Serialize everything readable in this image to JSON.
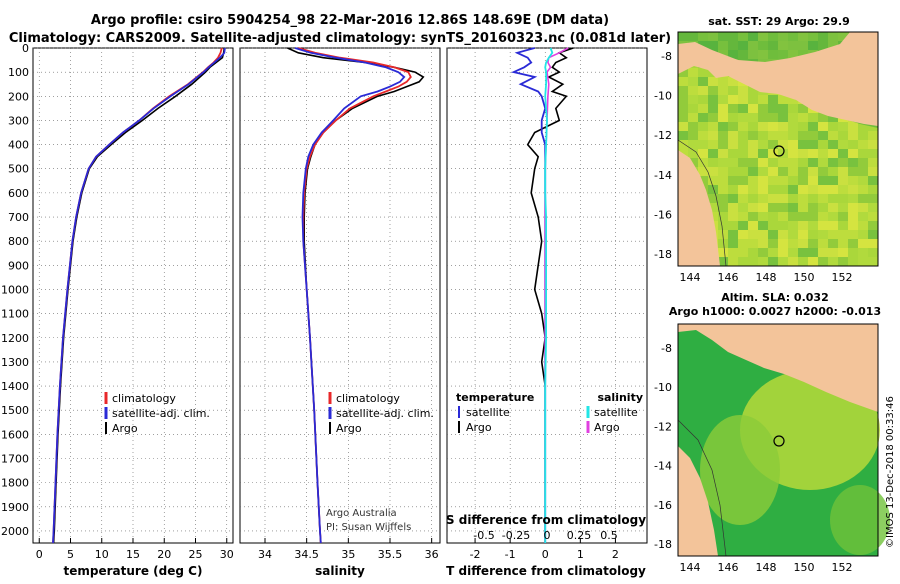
{
  "title": {
    "line1": "Argo profile: csiro 5904254_98 22-Mar-2016 12.86S 148.69E (DM data)",
    "line2": "Climatology: CARS2009. Satellite-adjusted climatology: synTS_20160323.nc (0.081d later)"
  },
  "colors": {
    "argo": "#000000",
    "clim": "#e8282a",
    "sat": "#2a2ad6",
    "sat_sal": "#22e6e6",
    "argo_sal": "#e040e0",
    "land": "#f3c49a"
  },
  "depth_axis": {
    "ticks": [
      "0",
      "100",
      "200",
      "300",
      "400",
      "500",
      "600",
      "700",
      "800",
      "900",
      "1000",
      "1100",
      "1200",
      "1300",
      "1400",
      "1500",
      "1600",
      "1700",
      "1800",
      "1900",
      "2000"
    ]
  },
  "chart_data": [
    {
      "type": "line",
      "panel": "temperature",
      "xlabel": "temperature (deg C)",
      "xlim": [
        -1,
        31
      ],
      "ylim": [
        0,
        2050
      ],
      "xticks": [
        "0",
        "5",
        "10",
        "15",
        "20",
        "25",
        "30"
      ],
      "series": [
        {
          "name": "Argo",
          "depth": [
            0,
            20,
            40,
            60,
            80,
            100,
            150,
            200,
            250,
            300,
            350,
            400,
            450,
            500,
            600,
            700,
            800,
            1000,
            1200,
            1400,
            1600,
            1800,
            2000,
            2050
          ],
          "values": [
            29.6,
            29.5,
            29.3,
            28.3,
            27.3,
            26.6,
            24.4,
            21.8,
            19.0,
            16.5,
            13.8,
            11.5,
            9.3,
            8.0,
            6.8,
            6.0,
            5.4,
            4.6,
            3.9,
            3.4,
            3.0,
            2.7,
            2.4,
            2.3
          ]
        },
        {
          "name": "climatology",
          "depth": [
            0,
            20,
            40,
            60,
            80,
            100,
            150,
            200,
            250,
            300,
            350,
            400,
            450,
            500,
            600,
            700,
            800,
            1000,
            1200,
            1400,
            1600,
            1800,
            2000,
            2050
          ],
          "values": [
            29.2,
            29.0,
            28.6,
            27.9,
            27.0,
            26.2,
            23.8,
            20.8,
            18.2,
            16.0,
            13.4,
            11.2,
            9.1,
            7.9,
            6.7,
            5.9,
            5.3,
            4.5,
            3.8,
            3.3,
            2.9,
            2.6,
            2.3,
            2.2
          ]
        },
        {
          "name": "satellite-adj. clim.",
          "depth": [
            0,
            20,
            40,
            60,
            80,
            100,
            150,
            200,
            250,
            300,
            350,
            400,
            450,
            500,
            600,
            700,
            800,
            1000,
            1200,
            1400,
            1600,
            1800,
            2000,
            2050
          ],
          "values": [
            29.7,
            29.6,
            28.9,
            28.0,
            27.1,
            26.3,
            23.9,
            21.0,
            18.3,
            16.0,
            13.4,
            11.2,
            9.1,
            7.9,
            6.7,
            5.9,
            5.3,
            4.5,
            3.8,
            3.3,
            2.9,
            2.6,
            2.3,
            2.2
          ]
        }
      ],
      "legend": [
        "climatology",
        "satellite-adj. clim.",
        "Argo"
      ]
    },
    {
      "type": "line",
      "panel": "salinity",
      "xlabel": "salinity",
      "xlim": [
        33.7,
        36.1
      ],
      "ylim": [
        0,
        2050
      ],
      "xticks": [
        "34",
        "34.5",
        "35",
        "35.5",
        "36"
      ],
      "series": [
        {
          "name": "Argo",
          "depth": [
            0,
            20,
            40,
            60,
            80,
            100,
            120,
            140,
            160,
            180,
            200,
            250,
            300,
            350,
            400,
            450,
            500,
            600,
            700,
            800,
            1000,
            1200,
            1500,
            1800,
            2000,
            2050
          ],
          "values": [
            34.27,
            34.4,
            34.7,
            35.2,
            35.55,
            35.8,
            35.9,
            35.85,
            35.7,
            35.55,
            35.35,
            35.05,
            34.85,
            34.7,
            34.6,
            34.55,
            34.51,
            34.48,
            34.47,
            34.47,
            34.5,
            34.54,
            34.59,
            34.63,
            34.66,
            34.67
          ]
        },
        {
          "name": "climatology",
          "depth": [
            0,
            20,
            40,
            60,
            80,
            100,
            120,
            140,
            160,
            180,
            200,
            250,
            300,
            350,
            400,
            450,
            500,
            600,
            700,
            800,
            1000,
            1200,
            1500,
            1800,
            2000,
            2050
          ],
          "values": [
            34.4,
            34.6,
            34.9,
            35.3,
            35.55,
            35.72,
            35.75,
            35.7,
            35.6,
            35.45,
            35.3,
            35.02,
            34.85,
            34.7,
            34.6,
            34.54,
            34.5,
            34.47,
            34.46,
            34.46,
            34.5,
            34.54,
            34.59,
            34.63,
            34.66,
            34.67
          ]
        },
        {
          "name": "satellite-adj. clim.",
          "depth": [
            0,
            20,
            40,
            60,
            80,
            100,
            120,
            140,
            160,
            180,
            200,
            250,
            300,
            350,
            400,
            450,
            500,
            600,
            700,
            800,
            1000,
            1200,
            1500,
            1800,
            2000,
            2050
          ],
          "values": [
            34.36,
            34.55,
            34.85,
            35.2,
            35.45,
            35.6,
            35.67,
            35.62,
            35.5,
            35.35,
            35.15,
            34.95,
            34.82,
            34.68,
            34.58,
            34.52,
            34.49,
            34.46,
            34.45,
            34.46,
            34.5,
            34.54,
            34.59,
            34.63,
            34.66,
            34.67
          ]
        }
      ],
      "legend": [
        "climatology",
        "satellite-adj. clim.",
        "Argo"
      ],
      "annotations": [
        "Argo Australia",
        "PI: Susan Wijffels"
      ]
    },
    {
      "type": "line",
      "panel": "difference",
      "xlabel": "T difference from climatology",
      "xlim": [
        -2.8,
        2.9
      ],
      "ylim": [
        0,
        2050
      ],
      "xticks": [
        "-2",
        "-1",
        "0",
        "1",
        "2"
      ],
      "s_axis_label": "S difference from climatology",
      "s_xticks": [
        "-0.5",
        "-0.25",
        "0",
        "0.25",
        "0.5"
      ],
      "series": [
        {
          "name": "temperature Argo",
          "depth": [
            0,
            20,
            40,
            60,
            80,
            100,
            120,
            150,
            180,
            200,
            250,
            300,
            350,
            400,
            450,
            500,
            600,
            700,
            800,
            900,
            1000,
            1100,
            1200,
            1300,
            1400,
            1600,
            1800,
            2000,
            2050
          ],
          "values": [
            0.8,
            0.4,
            0.6,
            0.3,
            0.2,
            0.4,
            0.1,
            0.5,
            0.2,
            0.6,
            0.3,
            0.4,
            -0.3,
            -0.5,
            -0.2,
            -0.3,
            -0.4,
            -0.2,
            -0.1,
            -0.2,
            -0.3,
            -0.1,
            0.0,
            -0.1,
            0.0,
            0.0,
            0.0,
            0.0,
            0.0
          ]
        },
        {
          "name": "temperature satellite",
          "depth": [
            0,
            20,
            40,
            60,
            80,
            100,
            120,
            150,
            180,
            200,
            250,
            300,
            350,
            400,
            450,
            500,
            600,
            700,
            800,
            900,
            1000,
            1100,
            1200,
            1300,
            1400,
            1600,
            1800,
            2000,
            2050
          ],
          "values": [
            -0.3,
            -0.8,
            -0.5,
            -0.4,
            -0.6,
            -0.9,
            -0.3,
            -0.7,
            -0.2,
            -0.1,
            0.0,
            -0.1,
            -0.1,
            0.0,
            0.0,
            0.0,
            0.0,
            0.0,
            0.0,
            0.0,
            0.0,
            0.0,
            0.0,
            0.0,
            0.0,
            0.0,
            0.0,
            0.0,
            0.0
          ]
        },
        {
          "name": "salinity Argo",
          "depth": [
            0,
            20,
            40,
            60,
            80,
            100,
            150,
            200,
            300,
            400,
            500,
            600,
            700,
            800,
            1000,
            1200,
            1400,
            1600,
            1800,
            2000,
            2050
          ],
          "values": [
            2.6,
            1.6,
            0.4,
            0.3,
            0.6,
            0.2,
            0.4,
            0.3,
            0.2,
            0.1,
            0.0,
            0.0,
            0.0,
            0.0,
            0.0,
            0.0,
            0.0,
            0.0,
            0.0,
            0.0,
            0.0
          ]
        },
        {
          "name": "salinity satellite",
          "depth": [
            0,
            20,
            40,
            60,
            80,
            100,
            150,
            200,
            300,
            400,
            500,
            600,
            700,
            800,
            1000,
            1200,
            1400,
            1600,
            1800,
            2000,
            2050
          ],
          "values": [
            0.6,
            0.8,
            0.4,
            0.1,
            0.0,
            0.1,
            0.1,
            0.0,
            0.2,
            0.1,
            0.0,
            0.0,
            0.1,
            0.1,
            0.1,
            0.1,
            0.0,
            0.0,
            0.0,
            0.0,
            0.0
          ]
        }
      ],
      "legend": {
        "temp_header": "temperature",
        "sal_header": "salinity",
        "temp_items": [
          "satellite",
          "Argo"
        ],
        "sal_items": [
          "satellite",
          "Argo"
        ]
      }
    }
  ],
  "maps": [
    {
      "title": "sat. SST: 29 Argo: 29.9",
      "lat_ticks": [
        "-8",
        "-10",
        "-12",
        "-14",
        "-16",
        "-18"
      ],
      "lon_ticks": [
        "144",
        "146",
        "148",
        "150",
        "152"
      ]
    },
    {
      "title_line1": "Altim. SLA: 0.032",
      "title_line2": "Argo h1000: 0.0027 h2000: -0.013",
      "lat_ticks": [
        "-8",
        "-10",
        "-12",
        "-14",
        "-16",
        "-18"
      ],
      "lon_ticks": [
        "144",
        "146",
        "148",
        "150",
        "152"
      ]
    }
  ],
  "credit": "©IMOS 13-Dec-2018 00:33:46"
}
